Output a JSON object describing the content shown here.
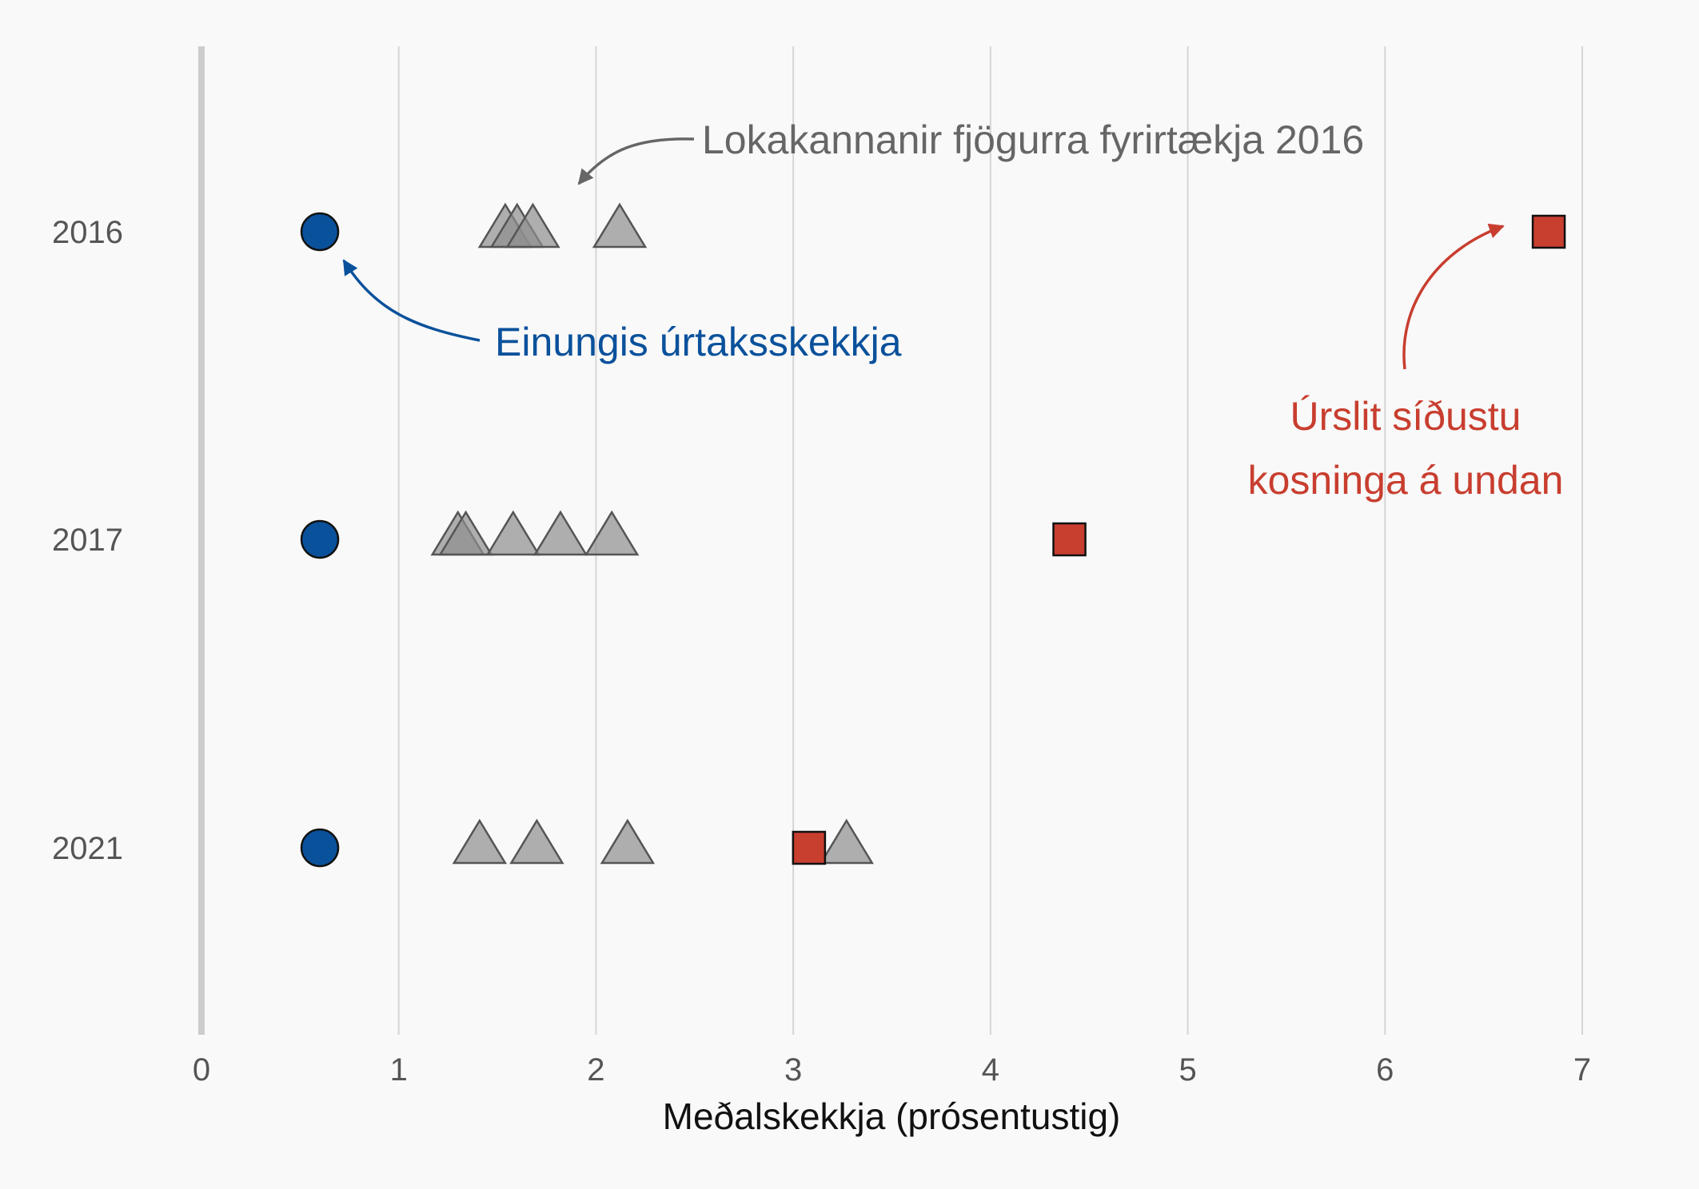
{
  "chart_data": {
    "type": "scatter",
    "xlabel": "Meðalskekkja (prósentustig)",
    "ylabel": "",
    "title": "",
    "xlim": [
      0,
      7
    ],
    "x_ticks": [
      0,
      1,
      2,
      3,
      4,
      5,
      6,
      7
    ],
    "categories": [
      "2016",
      "2017",
      "2021"
    ],
    "grid": "vertical",
    "series": [
      {
        "marker": "circle",
        "color": "#0a519b",
        "points": [
          {
            "category": "2016",
            "x": 0.6
          },
          {
            "category": "2017",
            "x": 0.6
          },
          {
            "category": "2021",
            "x": 0.6
          }
        ]
      },
      {
        "marker": "triangle",
        "color": "#8f8f8f",
        "points": [
          {
            "category": "2016",
            "x": 1.54
          },
          {
            "category": "2016",
            "x": 1.6
          },
          {
            "category": "2016",
            "x": 1.68
          },
          {
            "category": "2016",
            "x": 2.12
          },
          {
            "category": "2017",
            "x": 1.3
          },
          {
            "category": "2017",
            "x": 1.34
          },
          {
            "category": "2017",
            "x": 1.58
          },
          {
            "category": "2017",
            "x": 1.82
          },
          {
            "category": "2017",
            "x": 2.08
          },
          {
            "category": "2021",
            "x": 1.41
          },
          {
            "category": "2021",
            "x": 1.7
          },
          {
            "category": "2021",
            "x": 2.16
          },
          {
            "category": "2021",
            "x": 3.27
          }
        ]
      },
      {
        "marker": "square",
        "color": "#c83e2f",
        "points": [
          {
            "category": "2016",
            "x": 6.83
          },
          {
            "category": "2017",
            "x": 4.4
          },
          {
            "category": "2021",
            "x": 3.08
          }
        ]
      }
    ],
    "annotations": [
      {
        "text": "Lokakannanir fjögurra fyrirtækja 2016",
        "color": "#666666"
      },
      {
        "text": "Einungis úrtaksskekkja",
        "color": "#0a519b"
      },
      {
        "lines": [
          "Úrslit síðustu",
          "kosninga á undan"
        ],
        "color": "#c83e2f"
      }
    ]
  }
}
